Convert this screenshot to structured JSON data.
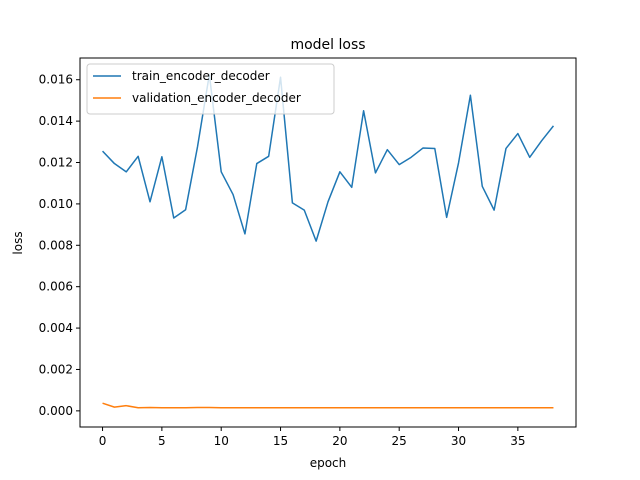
{
  "chart_data": {
    "type": "line",
    "title": "model loss",
    "xlabel": "epoch",
    "ylabel": "loss",
    "xlim": [
      -1.9,
      39.9
    ],
    "ylim": [
      -0.00078,
      0.01705
    ],
    "x_ticks": [
      0,
      5,
      10,
      15,
      20,
      25,
      30,
      35
    ],
    "x_tick_labels": [
      "0",
      "5",
      "10",
      "15",
      "20",
      "25",
      "30",
      "35"
    ],
    "y_ticks": [
      0.0,
      0.002,
      0.004,
      0.006,
      0.008,
      0.01,
      0.012,
      0.014,
      0.016
    ],
    "y_tick_labels": [
      "0.000",
      "0.002",
      "0.004",
      "0.006",
      "0.008",
      "0.010",
      "0.012",
      "0.014",
      "0.016"
    ],
    "grid": false,
    "legend_position": "upper-left",
    "x": [
      0,
      1,
      2,
      3,
      4,
      5,
      6,
      7,
      8,
      9,
      10,
      11,
      12,
      13,
      14,
      15,
      16,
      17,
      18,
      19,
      20,
      21,
      22,
      23,
      24,
      25,
      26,
      27,
      28,
      29,
      30,
      31,
      32,
      33,
      34,
      35,
      36,
      37,
      38
    ],
    "series": [
      {
        "name": "train_encoder_decoder",
        "color": "#1f77b4",
        "values": [
          0.01255,
          0.01195,
          0.01155,
          0.0123,
          0.0101,
          0.01228,
          0.00932,
          0.00972,
          0.01275,
          0.01625,
          0.01155,
          0.01045,
          0.00855,
          0.01195,
          0.0123,
          0.01612,
          0.01005,
          0.0097,
          0.0082,
          0.0101,
          0.01155,
          0.0108,
          0.0145,
          0.0115,
          0.01262,
          0.0119,
          0.01225,
          0.0127,
          0.01268,
          0.00935,
          0.01198,
          0.01525,
          0.01085,
          0.0097,
          0.01268,
          0.0134,
          0.01225,
          0.01305,
          0.01377
        ]
      },
      {
        "name": "validation_encoder_decoder",
        "color": "#ff7f0e",
        "values": [
          0.00037,
          0.00018,
          0.00025,
          0.00015,
          0.00016,
          0.00015,
          0.00015,
          0.00015,
          0.00016,
          0.00016,
          0.00015,
          0.00015,
          0.00015,
          0.00015,
          0.00015,
          0.00015,
          0.00015,
          0.00015,
          0.00015,
          0.00015,
          0.00015,
          0.00015,
          0.00015,
          0.00015,
          0.00015,
          0.00015,
          0.00015,
          0.00015,
          0.00015,
          0.00015,
          0.00015,
          0.00015,
          0.00015,
          0.00015,
          0.00015,
          0.00015,
          0.00015,
          0.00015,
          0.00015
        ]
      }
    ]
  }
}
